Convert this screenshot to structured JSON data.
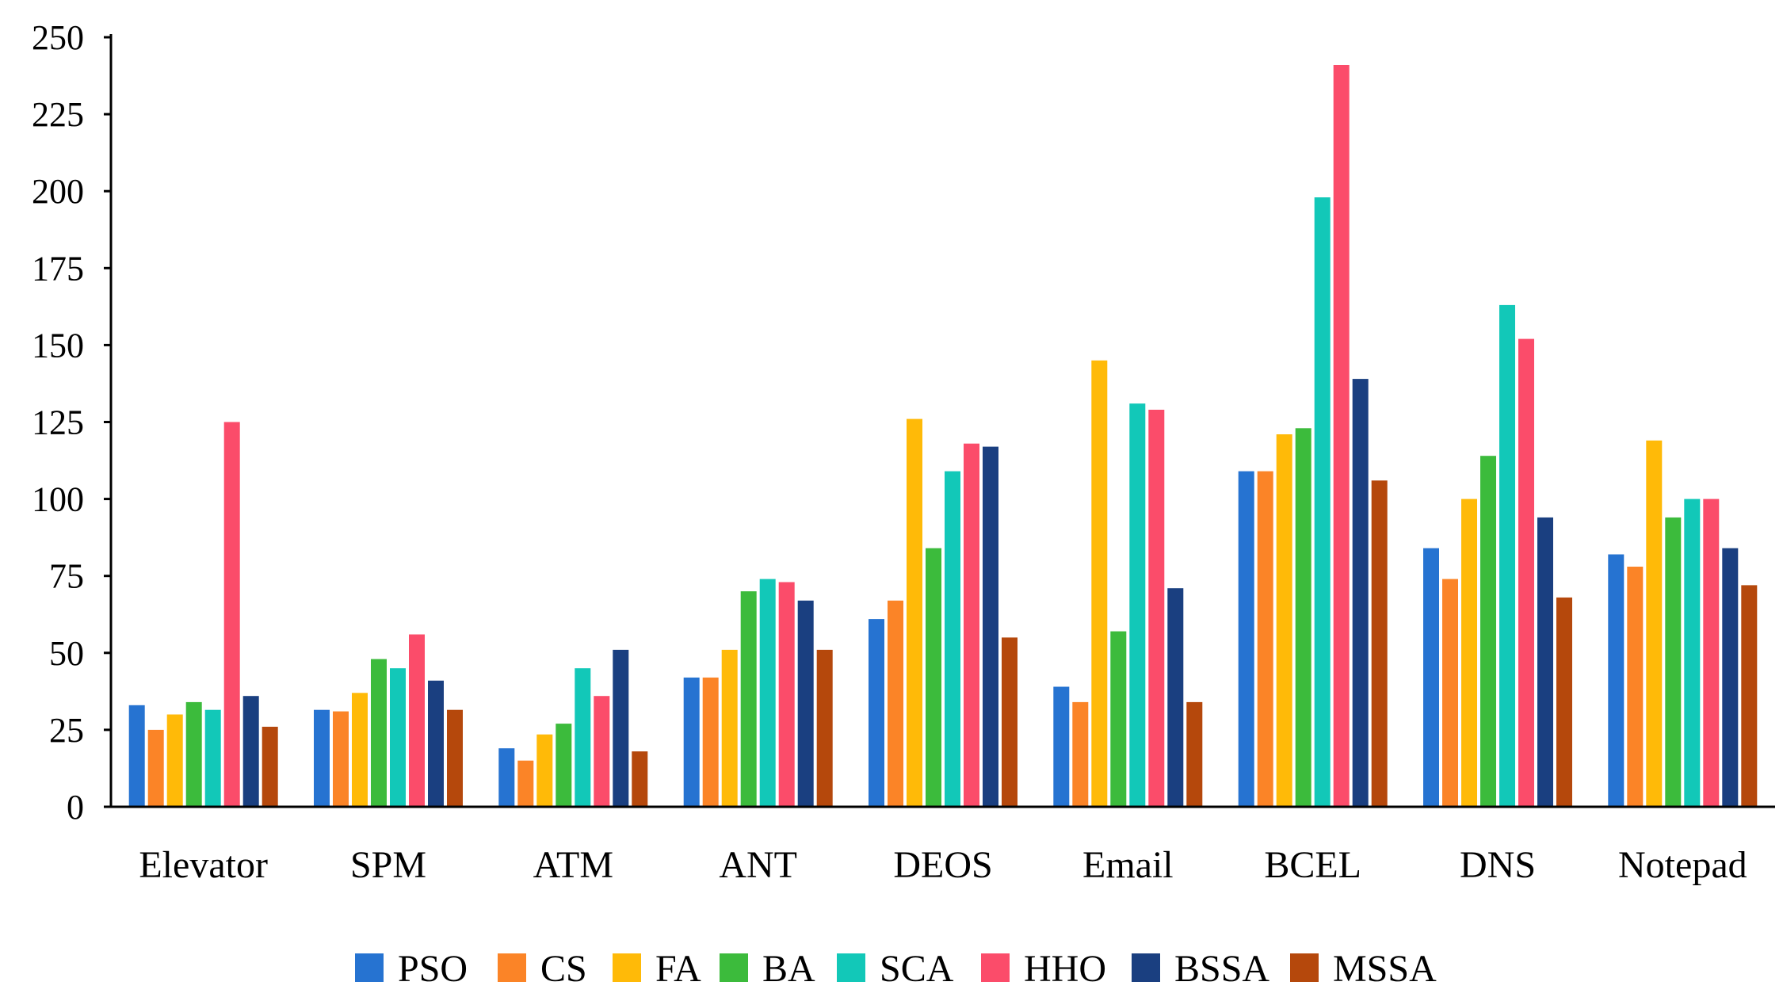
{
  "chart_data": {
    "type": "bar",
    "title": "",
    "xlabel": "",
    "ylabel": "",
    "ylim": [
      0,
      250
    ],
    "yticks": [
      0,
      25,
      50,
      75,
      100,
      125,
      150,
      175,
      200,
      225,
      250
    ],
    "grid": false,
    "legend_position": "bottom",
    "categories": [
      "Elevator",
      "SPM",
      "ATM",
      "ANT",
      "DEOS",
      "Email",
      "BCEL",
      "DNS",
      "Notepad"
    ],
    "series": [
      {
        "name": "PSO",
        "color": "#2673D1",
        "values": [
          33,
          31.5,
          19,
          42,
          61,
          39,
          109,
          84,
          82
        ]
      },
      {
        "name": "CS",
        "color": "#FB8427",
        "values": [
          25,
          31,
          15,
          42,
          67,
          34,
          109,
          74,
          78
        ]
      },
      {
        "name": "FA",
        "color": "#FFBA08",
        "values": [
          30,
          37,
          23.5,
          51,
          126,
          145,
          121,
          100,
          119
        ]
      },
      {
        "name": "BA",
        "color": "#3CBB3C",
        "values": [
          34,
          48,
          27,
          70,
          84,
          57,
          123,
          114,
          94
        ]
      },
      {
        "name": "SCA",
        "color": "#12C8B8",
        "values": [
          31.5,
          45,
          45,
          74,
          109,
          131,
          198,
          163,
          100
        ]
      },
      {
        "name": "HHO",
        "color": "#FB4C6A",
        "values": [
          125,
          56,
          36,
          73,
          118,
          129,
          241,
          152,
          100
        ]
      },
      {
        "name": "BSSA",
        "color": "#1A3F80",
        "values": [
          36,
          41,
          51,
          67,
          117,
          71,
          139,
          94,
          84
        ]
      },
      {
        "name": "MSSA",
        "color": "#B5480C",
        "values": [
          26,
          31.5,
          18,
          51,
          55,
          34,
          106,
          68,
          72
        ]
      }
    ]
  }
}
